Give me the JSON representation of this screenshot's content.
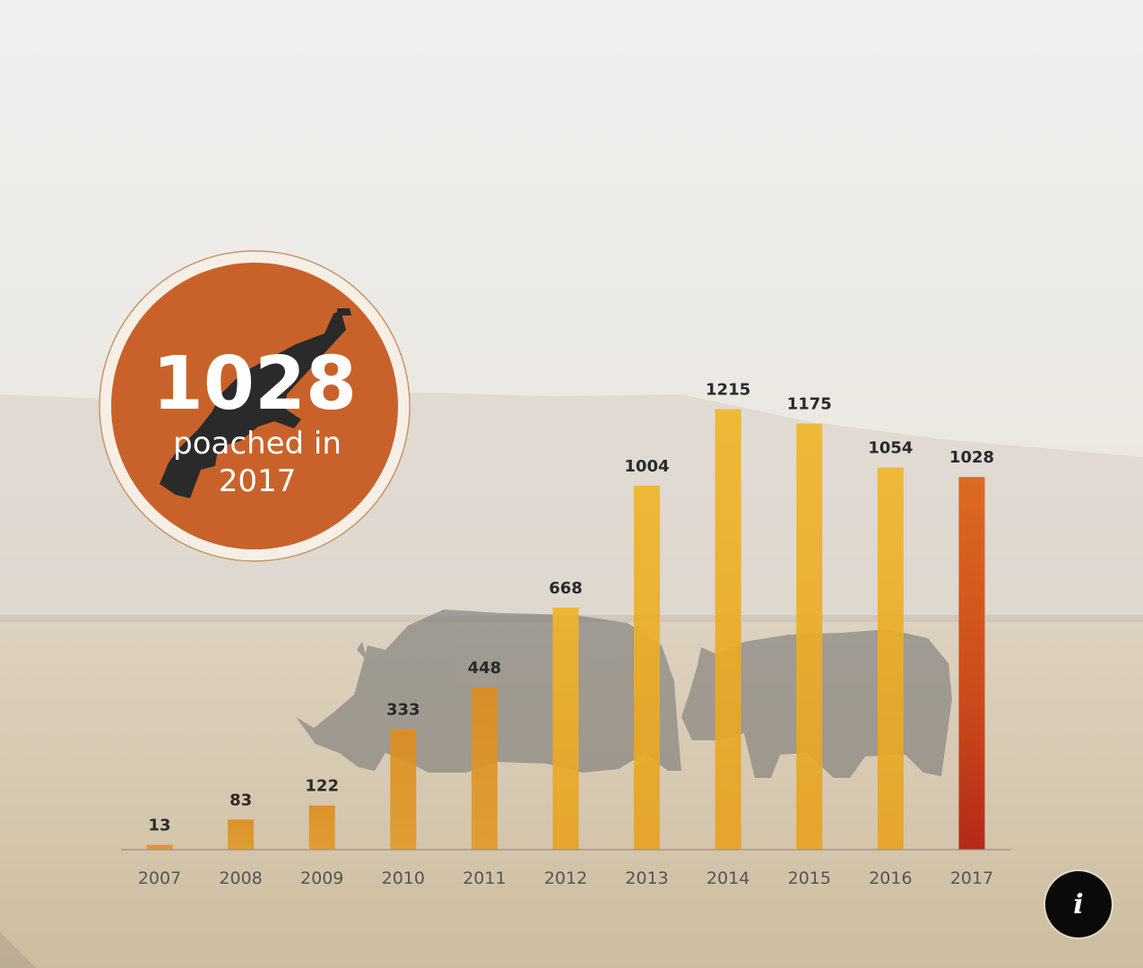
{
  "badge": {
    "number": "1028",
    "line1": "poached in",
    "line2": "2017",
    "color": "#c9622a",
    "icon": "rifle-icon"
  },
  "info_button": {
    "label": "i",
    "icon": "info-icon"
  },
  "colors": {
    "bar_yellow": "#f0b32c",
    "bar_orange": "#d98a1e",
    "bar_highlight_top": "#d9661e",
    "bar_highlight_bottom": "#b8321a"
  },
  "chart_data": {
    "type": "bar",
    "title": "",
    "xlabel": "",
    "ylabel": "",
    "categories": [
      "2007",
      "2008",
      "2009",
      "2010",
      "2011",
      "2012",
      "2013",
      "2014",
      "2015",
      "2016",
      "2017"
    ],
    "values": [
      13,
      83,
      122,
      333,
      448,
      668,
      1004,
      1215,
      1175,
      1054,
      1028
    ],
    "highlight": "2017",
    "ylim": [
      0,
      1300
    ],
    "grid": false,
    "legend": "none"
  }
}
